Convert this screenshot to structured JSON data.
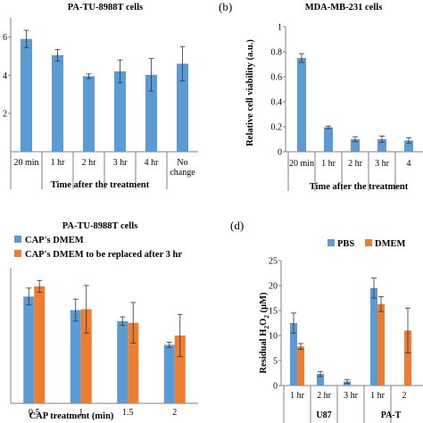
{
  "chart_data": [
    {
      "panel": "",
      "type": "bar",
      "title": "PA-TU-8988T cells",
      "xlabel": "Time after the treatment",
      "ylabel": "",
      "ylim": [
        0,
        7
      ],
      "yticks": [
        {
          "value": 2,
          "label": "2"
        },
        {
          "value": 4,
          "label": "4"
        },
        {
          "value": 6,
          "label": "6"
        }
      ],
      "categories": [
        "20 min",
        "1 hr",
        "2 hr",
        "3 hr",
        "4 hr",
        "No change"
      ],
      "series": [
        {
          "color": "#5b9bd5",
          "values": [
            5.9,
            5.05,
            3.95,
            4.2,
            4.02,
            4.6
          ],
          "errors": [
            0.45,
            0.3,
            0.12,
            0.6,
            0.85,
            0.9
          ]
        }
      ],
      "grid": false
    },
    {
      "panel": "(b)",
      "type": "bar",
      "title": "MDA-MB-231 cells",
      "xlabel": "Time after the treatment",
      "ylabel": "Relative cell viability (a.u.)",
      "ylim": [
        0,
        1
      ],
      "yticks": [
        {
          "value": 0,
          "label": "0"
        },
        {
          "value": 0.2,
          "label": "0.2"
        },
        {
          "value": 0.4,
          "label": "0.4"
        },
        {
          "value": 0.6,
          "label": "0.6"
        },
        {
          "value": 0.8,
          "label": "0.8"
        },
        {
          "value": 1,
          "label": "1"
        }
      ],
      "categories": [
        "20 min",
        "1 hr",
        "2 hr",
        "3 hr",
        "4"
      ],
      "series": [
        {
          "color": "#5b9bd5",
          "values": [
            0.75,
            0.195,
            0.1,
            0.1,
            0.09
          ],
          "errors": [
            0.035,
            0.01,
            0.02,
            0.025,
            0.02
          ]
        }
      ],
      "grid": false
    },
    {
      "panel": "",
      "type": "bar",
      "title": "PA-TU-8988T cells",
      "xlabel": "CAP treatment (min)",
      "ylabel": "",
      "ylim": [
        0,
        0.8
      ],
      "yticks": [],
      "categories": [
        "0.5",
        "1",
        "1.5",
        "2"
      ],
      "series": [
        {
          "name": "CAP's DMEM",
          "color": "#5b9bd5",
          "values": [
            0.63,
            0.55,
            0.485,
            0.345
          ],
          "errors": [
            0.05,
            0.065,
            0.025,
            0.015
          ]
        },
        {
          "name": "CAP's DMEM to be replaced after 3 hr",
          "color": "#ed7d31",
          "values": [
            0.69,
            0.555,
            0.475,
            0.4
          ],
          "errors": [
            0.035,
            0.14,
            0.12,
            0.125
          ]
        }
      ],
      "legend": "top-left",
      "grid": false
    },
    {
      "panel": "(d)",
      "type": "bar",
      "title": "",
      "xlabel": "",
      "ylabel": "Residual H2O2 (μM)",
      "ylim": [
        0,
        25
      ],
      "yticks": [
        {
          "value": 0,
          "label": "0"
        },
        {
          "value": 5,
          "label": "5"
        },
        {
          "value": 10,
          "label": "10"
        },
        {
          "value": 15,
          "label": "15"
        },
        {
          "value": 20,
          "label": "20"
        },
        {
          "value": 25,
          "label": "25"
        }
      ],
      "categories": [
        "1 hr",
        "2 hr",
        "3 hr",
        "1 hr",
        "2"
      ],
      "groups": [
        {
          "label": "U87",
          "from": 0,
          "to": 2
        },
        {
          "label": "PA-T",
          "from": 3,
          "to": 4
        }
      ],
      "series": [
        {
          "name": "PBS",
          "color": "#5b9bd5",
          "values": [
            12.5,
            2.3,
            0.8,
            19.5,
            0
          ],
          "errors": [
            2.0,
            0.5,
            0.4,
            2.0,
            0
          ]
        },
        {
          "name": "DMEM",
          "color": "#ed7d31",
          "values": [
            7.8,
            0,
            0,
            16.3,
            11.0
          ],
          "errors": [
            0.6,
            0,
            0,
            1.5,
            4.5
          ]
        }
      ],
      "legend": "top",
      "grid": false
    }
  ]
}
